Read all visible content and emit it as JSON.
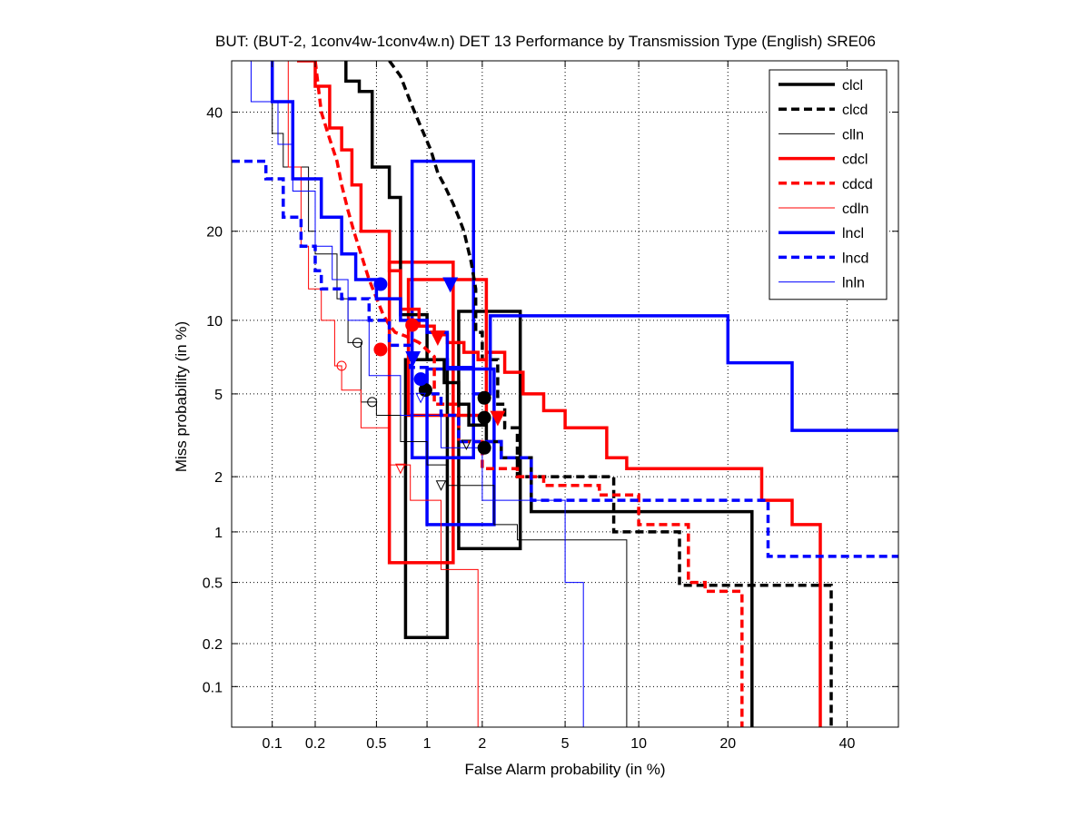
{
  "chart_data": {
    "type": "line",
    "title": "BUT: (BUT-2, 1conv4w-1conv4w.n) DET 13 Performance by Transmission Type (English) SRE06",
    "xlabel": "False Alarm probability (in %)",
    "ylabel": "Miss probability (in %)",
    "x_ticks": [
      0.1,
      0.2,
      0.5,
      1,
      2,
      5,
      10,
      20,
      40
    ],
    "x_tick_labels": [
      "0.1",
      "0.2",
      "0.5",
      "1",
      "2",
      "5",
      "10",
      "20",
      "40"
    ],
    "y_ticks": [
      0.1,
      0.2,
      0.5,
      1,
      2,
      5,
      10,
      20,
      40
    ],
    "y_tick_labels": [
      "0.1",
      "0.2",
      "0.5",
      "1",
      "2",
      "5",
      "10",
      "20",
      "40"
    ],
    "xlim": [
      0.05,
      50
    ],
    "ylim": [
      0.05,
      50
    ],
    "grid": "on",
    "legend_position": "top-right",
    "colors": {
      "black": "#000000",
      "red": "#ff0000",
      "blue": "#0000ff",
      "grid": "#000000"
    },
    "series": [
      {
        "name": "clcl",
        "color": "black",
        "style": "solid",
        "weight": "thick",
        "x": [
          0.32,
          0.32,
          0.39,
          0.39,
          0.47,
          0.47,
          0.6,
          0.6,
          0.7,
          0.7,
          1.0,
          1.0,
          1.25,
          1.25,
          1.5,
          1.5,
          1.7,
          1.7,
          2.1,
          2.1,
          2.5,
          2.5,
          3.5,
          3.5,
          8.0,
          8.0,
          23.5,
          23.5
        ],
        "y": [
          50,
          46,
          46,
          44,
          44,
          30,
          30,
          25,
          25,
          10.5,
          10.5,
          7.0,
          7.0,
          5.6,
          5.6,
          4.5,
          4.5,
          3.6,
          3.6,
          3.0,
          3.0,
          2.5,
          2.5,
          1.3,
          1.3,
          1.3,
          1.3,
          0.05
        ]
      },
      {
        "name": "clcd",
        "color": "black",
        "style": "dashed",
        "weight": "thick",
        "x": [
          0.6,
          0.7,
          0.8,
          0.9,
          1.05,
          1.15,
          1.25,
          1.4,
          1.5,
          1.6,
          1.75,
          1.85,
          1.85,
          2.0,
          2.0,
          2.4,
          2.4,
          2.6,
          2.6,
          3.0,
          3.0,
          8.0,
          8.0,
          14.0,
          14.0,
          37.0,
          37.0
        ],
        "y": [
          50,
          47,
          42,
          38,
          33,
          29,
          27,
          24,
          22,
          20,
          16,
          13,
          9.0,
          9.0,
          7.0,
          7.0,
          4.5,
          4.5,
          3.5,
          3.5,
          2.0,
          2.0,
          1.0,
          1.0,
          0.48,
          0.48,
          0.05
        ]
      },
      {
        "name": "clln",
        "color": "black",
        "style": "solid",
        "weight": "thin",
        "x": [
          0.1,
          0.1,
          0.12,
          0.12,
          0.18,
          0.18,
          0.2,
          0.2,
          0.28,
          0.28,
          0.33,
          0.33,
          0.4,
          0.4,
          0.5,
          0.5,
          0.7,
          0.7,
          1.0,
          1.0,
          1.3,
          1.3,
          1.6,
          1.6,
          2.3,
          2.3,
          3.0,
          3.0,
          9.0,
          9.0
        ],
        "y": [
          50,
          36,
          36,
          30,
          30,
          20,
          20,
          17,
          17,
          12,
          12,
          8.2,
          8.2,
          4.6,
          4.6,
          4.0,
          4.0,
          3.0,
          3.0,
          2.3,
          2.3,
          1.8,
          1.8,
          1.8,
          1.8,
          1.1,
          1.1,
          0.9,
          0.9,
          0.05
        ]
      },
      {
        "name": "cdcl",
        "color": "red",
        "style": "solid",
        "weight": "thick",
        "x": [
          0.15,
          0.2,
          0.2,
          0.25,
          0.25,
          0.3,
          0.3,
          0.35,
          0.35,
          0.4,
          0.4,
          0.6,
          0.6,
          0.7,
          0.7,
          0.9,
          0.9,
          1.1,
          1.1,
          1.3,
          1.3,
          1.6,
          1.6,
          1.9,
          1.9,
          2.1,
          2.1,
          2.6,
          2.6,
          3.2,
          3.2,
          4.0,
          4.0,
          5.0,
          5.0,
          7.5,
          7.5,
          9.0,
          9.0,
          25.0,
          25.0,
          30.0,
          30.0,
          35.0,
          35.0
        ],
        "y": [
          50,
          50,
          45,
          45,
          37,
          37,
          33,
          33,
          27,
          27,
          20,
          20,
          15,
          15,
          11,
          11,
          9.5,
          9.5,
          8.8,
          8.8,
          8.2,
          8.2,
          7.5,
          7.5,
          7.0,
          7.0,
          7.5,
          7.5,
          6.2,
          6.2,
          5.0,
          5.0,
          4.2,
          4.2,
          3.5,
          3.5,
          2.5,
          2.5,
          2.2,
          2.2,
          1.5,
          1.5,
          1.1,
          1.1,
          0.05
        ]
      },
      {
        "name": "cdcd",
        "color": "red",
        "style": "dashed",
        "weight": "thick",
        "x": [
          0.2,
          0.22,
          0.25,
          0.28,
          0.3,
          0.33,
          0.36,
          0.4,
          0.45,
          0.55,
          0.6,
          0.65,
          0.75,
          0.9,
          1.1,
          1.1,
          1.5,
          1.5,
          2.0,
          2.0,
          3.0,
          3.0,
          4.0,
          4.0,
          7.0,
          7.0,
          10.0,
          10.0,
          15.0,
          15.0,
          17.0,
          17.0,
          22.0,
          22.0
        ],
        "y": [
          50,
          40,
          35,
          31,
          27,
          23,
          20,
          17,
          14,
          10.5,
          9.6,
          9.0,
          8.7,
          8.2,
          7.2,
          4.5,
          4.5,
          3.0,
          3.0,
          2.2,
          2.2,
          2.0,
          2.0,
          1.8,
          1.8,
          1.6,
          1.6,
          1.1,
          1.1,
          0.5,
          0.5,
          0.44,
          0.44,
          0.05
        ]
      },
      {
        "name": "cdln",
        "color": "red",
        "style": "solid",
        "weight": "thin",
        "x": [
          0.13,
          0.13,
          0.16,
          0.16,
          0.18,
          0.18,
          0.22,
          0.22,
          0.27,
          0.27,
          0.3,
          0.3,
          0.4,
          0.4,
          0.6,
          0.6,
          0.8,
          0.8,
          1.2,
          1.2,
          1.9,
          1.9
        ],
        "y": [
          50,
          30,
          30,
          18,
          18,
          13,
          13,
          10,
          10,
          6.6,
          6.6,
          5.2,
          5.2,
          3.5,
          3.5,
          2.3,
          2.3,
          1.5,
          1.5,
          0.6,
          0.6,
          0.05
        ]
      },
      {
        "name": "lncl",
        "color": "blue",
        "style": "solid",
        "weight": "thick",
        "x": [
          0.1,
          0.1,
          0.14,
          0.14,
          0.22,
          0.22,
          0.3,
          0.3,
          0.37,
          0.37,
          0.5,
          0.5,
          0.7,
          0.7,
          1.0,
          1.0,
          1.3,
          1.3,
          1.8,
          1.8,
          2.2,
          2.2,
          20.0,
          20.0,
          30.0,
          30.0,
          50.0
        ],
        "y": [
          50,
          42,
          42,
          28,
          28,
          22,
          22,
          17,
          17,
          14,
          14,
          12,
          12,
          10,
          10,
          9.0,
          9.0,
          6.5,
          6.5,
          5.0,
          5.0,
          10.4,
          10.4,
          6.8,
          6.8,
          3.4,
          3.4
        ]
      },
      {
        "name": "lncd",
        "color": "blue",
        "style": "dashed",
        "weight": "thick",
        "x": [
          0.05,
          0.09,
          0.09,
          0.12,
          0.12,
          0.16,
          0.16,
          0.2,
          0.2,
          0.22,
          0.22,
          0.3,
          0.3,
          0.45,
          0.45,
          0.6,
          0.6,
          0.8,
          0.8,
          1.0,
          1.0,
          1.2,
          1.2,
          1.5,
          1.5,
          2.5,
          2.5,
          3.5,
          3.5,
          26.0,
          26.0,
          50.0
        ],
        "y": [
          31,
          31,
          28,
          28,
          22,
          22,
          18,
          18,
          15,
          15,
          13,
          13,
          12,
          12,
          10,
          10,
          8.0,
          8.0,
          6.5,
          6.5,
          5.0,
          5.0,
          4.0,
          4.0,
          3.0,
          3.0,
          2.5,
          2.5,
          1.5,
          1.5,
          0.72,
          0.72
        ]
      },
      {
        "name": "lnln",
        "color": "blue",
        "style": "solid",
        "weight": "thin",
        "x": [
          0.07,
          0.07,
          0.11,
          0.11,
          0.14,
          0.14,
          0.2,
          0.2,
          0.26,
          0.26,
          0.33,
          0.33,
          0.45,
          0.45,
          0.7,
          0.7,
          1.2,
          1.2,
          2.0,
          2.0,
          5.0,
          5.0,
          6.0,
          6.0
        ],
        "y": [
          50,
          42,
          42,
          34,
          34,
          26,
          26,
          18,
          18,
          14,
          14,
          10,
          10,
          6.0,
          6.0,
          4.0,
          4.0,
          2.8,
          2.8,
          1.5,
          1.5,
          0.5,
          0.5,
          0.05
        ]
      }
    ],
    "confidence_boxes": [
      {
        "color": "black",
        "style": "solid",
        "weight": "thick",
        "x": [
          0.75,
          1.3
        ],
        "y": [
          0.22,
          7.0
        ]
      },
      {
        "color": "black",
        "style": "solid",
        "weight": "thick",
        "x": [
          1.5,
          3.1
        ],
        "y": [
          0.8,
          10.8
        ]
      },
      {
        "color": "red",
        "style": "solid",
        "weight": "thick",
        "x": [
          0.6,
          1.4
        ],
        "y": [
          0.66,
          16.0
        ]
      },
      {
        "color": "red",
        "style": "solid",
        "weight": "thick",
        "x": [
          0.78,
          2.1
        ],
        "y": [
          4.0,
          14.0
        ]
      },
      {
        "color": "blue",
        "style": "solid",
        "weight": "thick",
        "x": [
          0.82,
          1.8
        ],
        "y": [
          2.5,
          31.0
        ]
      },
      {
        "color": "blue",
        "style": "solid",
        "weight": "thick",
        "x": [
          1.0,
          2.3
        ],
        "y": [
          1.1,
          6.4
        ]
      }
    ],
    "markers": [
      {
        "series": "clcl",
        "shape": "circle",
        "filled": true,
        "x": 0.98,
        "y": 5.2
      },
      {
        "series": "clcl",
        "shape": "circle",
        "filled": true,
        "x": 2.05,
        "y": 3.9
      },
      {
        "series": "clcd",
        "shape": "circle",
        "filled": true,
        "x": 2.05,
        "y": 4.8
      },
      {
        "series": "clcd",
        "shape": "circle",
        "filled": true,
        "x": 2.05,
        "y": 2.8
      },
      {
        "series": "clln",
        "shape": "circle",
        "filled": false,
        "x": 0.38,
        "y": 8.2
      },
      {
        "series": "clln",
        "shape": "circle",
        "filled": false,
        "x": 0.47,
        "y": 4.6
      },
      {
        "series": "clln",
        "shape": "triangle",
        "filled": false,
        "x": 1.2,
        "y": 1.8
      },
      {
        "series": "clln",
        "shape": "triangle",
        "filled": false,
        "x": 1.65,
        "y": 2.9
      },
      {
        "series": "cdcl",
        "shape": "circle",
        "filled": true,
        "x": 0.82,
        "y": 9.6
      },
      {
        "series": "cdcl",
        "shape": "triangle",
        "filled": true,
        "x": 1.15,
        "y": 8.6
      },
      {
        "series": "cdcd",
        "shape": "circle",
        "filled": true,
        "x": 0.53,
        "y": 7.7
      },
      {
        "series": "cdcd",
        "shape": "triangle",
        "filled": true,
        "x": 2.4,
        "y": 3.9
      },
      {
        "series": "cdln",
        "shape": "circle",
        "filled": false,
        "x": 0.3,
        "y": 6.6
      },
      {
        "series": "cdln",
        "shape": "triangle",
        "filled": false,
        "x": 0.7,
        "y": 2.2
      },
      {
        "series": "lncl",
        "shape": "circle",
        "filled": true,
        "x": 0.53,
        "y": 13.5
      },
      {
        "series": "lncl",
        "shape": "triangle",
        "filled": true,
        "x": 1.35,
        "y": 13.5
      },
      {
        "series": "lncd",
        "shape": "circle",
        "filled": true,
        "x": 0.92,
        "y": 5.8
      },
      {
        "series": "lncd",
        "shape": "triangle",
        "filled": true,
        "x": 0.83,
        "y": 7.1
      },
      {
        "series": "lnln",
        "shape": "triangle",
        "filled": false,
        "x": 0.92,
        "y": 4.8
      }
    ]
  }
}
